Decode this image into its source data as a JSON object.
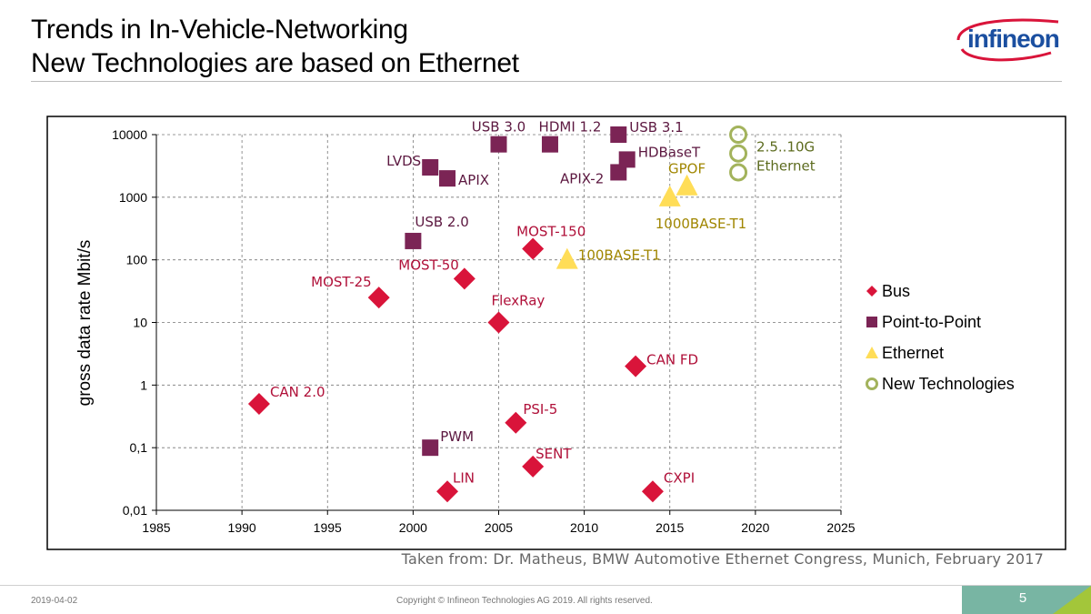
{
  "slide": {
    "title_line1": "Trends in In-Vehicle-Networking",
    "title_line2": "New Technologies are based on Ethernet",
    "logo_text": "infineon",
    "source_note": "Taken from: Dr. Matheus, BMW Automotive Ethernet Congress, Munich, February 2017",
    "date": "2019-04-02",
    "copyright": "Copyright © Infineon Technologies AG 2019. All rights reserved.",
    "page_number": "5"
  },
  "colors": {
    "bus": "#d9143a",
    "point_to_point": "#7b2455",
    "ethernet": "#ffdd57",
    "new_tech": "#a3b35c",
    "label_bus": "#b01039",
    "label_p2p": "#5c1840",
    "label_eth": "#a08600",
    "label_new": "#5c6b1e",
    "accent": "#78b5a3"
  },
  "chart_data": {
    "type": "scatter",
    "title": "",
    "xlabel": "",
    "ylabel": "gross data rate Mbit/s",
    "yscale": "log",
    "xlim": [
      1985,
      2025
    ],
    "ylim": [
      0.01,
      10000
    ],
    "x_ticks": [
      "1985",
      "1990",
      "1995",
      "2000",
      "2005",
      "2010",
      "2015",
      "2020",
      "2025"
    ],
    "y_ticks": [
      "0,01",
      "0,1",
      "1",
      "10",
      "100",
      "1000",
      "10000"
    ],
    "grid": true,
    "legend_position": "right",
    "series": [
      {
        "name": "Bus",
        "marker": "diamond",
        "points": [
          {
            "label": "CAN 2.0",
            "x": 1991,
            "y": 0.5
          },
          {
            "label": "MOST-25",
            "x": 1998,
            "y": 25
          },
          {
            "label": "LIN",
            "x": 2002,
            "y": 0.02
          },
          {
            "label": "MOST-50",
            "x": 2003,
            "y": 50
          },
          {
            "label": "FlexRay",
            "x": 2005,
            "y": 10
          },
          {
            "label": "PSI-5",
            "x": 2006,
            "y": 0.25
          },
          {
            "label": "SENT",
            "x": 2007,
            "y": 0.05
          },
          {
            "label": "MOST-150",
            "x": 2007,
            "y": 150
          },
          {
            "label": "CAN FD",
            "x": 2013,
            "y": 2
          },
          {
            "label": "CXPI",
            "x": 2014,
            "y": 0.02
          }
        ]
      },
      {
        "name": "Point-to-Point",
        "marker": "square",
        "points": [
          {
            "label": "USB 2.0",
            "x": 2000,
            "y": 200
          },
          {
            "label": "PWM",
            "x": 2001,
            "y": 0.1
          },
          {
            "label": "LVDS",
            "x": 2001,
            "y": 3000
          },
          {
            "label": "APIX",
            "x": 2002,
            "y": 2000
          },
          {
            "label": "USB 3.0",
            "x": 2005,
            "y": 7000
          },
          {
            "label": "HDMI 1.2",
            "x": 2008,
            "y": 7000
          },
          {
            "label": "USB 3.1",
            "x": 2012,
            "y": 10000
          },
          {
            "label": "APIX-2",
            "x": 2012,
            "y": 2500
          },
          {
            "label": "HDBaseT",
            "x": 2012.5,
            "y": 4000
          }
        ]
      },
      {
        "name": "Ethernet",
        "marker": "triangle",
        "points": [
          {
            "label": "100BASE-T1",
            "x": 2009,
            "y": 100
          },
          {
            "label": "1000BASE-T1",
            "x": 2015,
            "y": 1000
          },
          {
            "label": "GPOF",
            "x": 2016,
            "y": 1500
          }
        ]
      },
      {
        "name": "New Technologies",
        "marker": "circle-open",
        "points": [
          {
            "label": "",
            "x": 2019,
            "y": 10000
          },
          {
            "label": "",
            "x": 2019,
            "y": 5000
          },
          {
            "label": "",
            "x": 2019,
            "y": 2500
          }
        ],
        "annotation_line1": "2.5..10G",
        "annotation_line2": "Ethernet"
      }
    ]
  }
}
